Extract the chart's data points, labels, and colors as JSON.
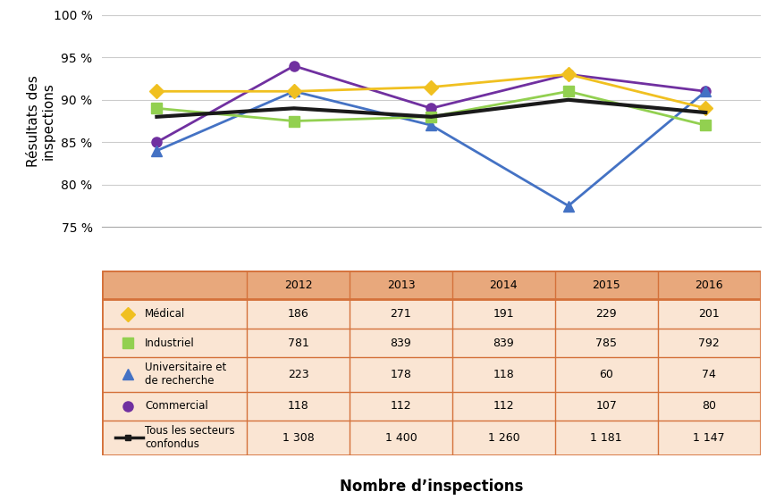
{
  "years": [
    2012,
    2013,
    2014,
    2015,
    2016
  ],
  "medical": [
    91.0,
    91.0,
    91.5,
    93.0,
    89.0
  ],
  "industriel": [
    89.0,
    87.5,
    88.0,
    91.0,
    87.0
  ],
  "universitaire": [
    84.0,
    91.0,
    87.0,
    77.5,
    91.0
  ],
  "commercial": [
    85.0,
    94.0,
    89.0,
    93.0,
    91.0
  ],
  "tous": [
    88.0,
    89.0,
    88.0,
    90.0,
    88.5
  ],
  "medical_color": "#F0C020",
  "industriel_color": "#92D050",
  "universitaire_color": "#4472C4",
  "commercial_color": "#7030A0",
  "tous_color": "#1A1A1A",
  "ylabel": "Résultats des\ninspections",
  "xlabel": "Nombre d’inspections",
  "ylim_min": 75,
  "ylim_max": 100,
  "yticks": [
    75,
    80,
    85,
    90,
    95,
    100
  ],
  "years_labels": [
    "2012",
    "2013",
    "2014",
    "2015",
    "2016"
  ],
  "col_labels": [
    "",
    "2012",
    "2013",
    "2014",
    "2015",
    "2016"
  ],
  "table_rows_data": [
    [
      "186",
      "271",
      "191",
      "229",
      "201"
    ],
    [
      "781",
      "839",
      "839",
      "785",
      "792"
    ],
    [
      "223",
      "178",
      "118",
      "60",
      "74"
    ],
    [
      "118",
      "112",
      "112",
      "107",
      "80"
    ],
    [
      "1 308",
      "1 400",
      "1 260",
      "1 181",
      "1 147"
    ]
  ],
  "legend_labels": [
    "Médical",
    "Industriel",
    "Universitaire et\nde recherche",
    "Commercial",
    "Tous les secteurs\nconfondus"
  ],
  "marker_types": [
    "D",
    "s",
    "^",
    "o",
    "none"
  ],
  "table_header_bg": "#E8A87C",
  "table_row_bg": "#FAE5D3",
  "table_border_color": "#D4713A",
  "bg_color": "#FFFFFF",
  "chart_border_color": "#AAAAAA",
  "grid_color": "#CCCCCC"
}
